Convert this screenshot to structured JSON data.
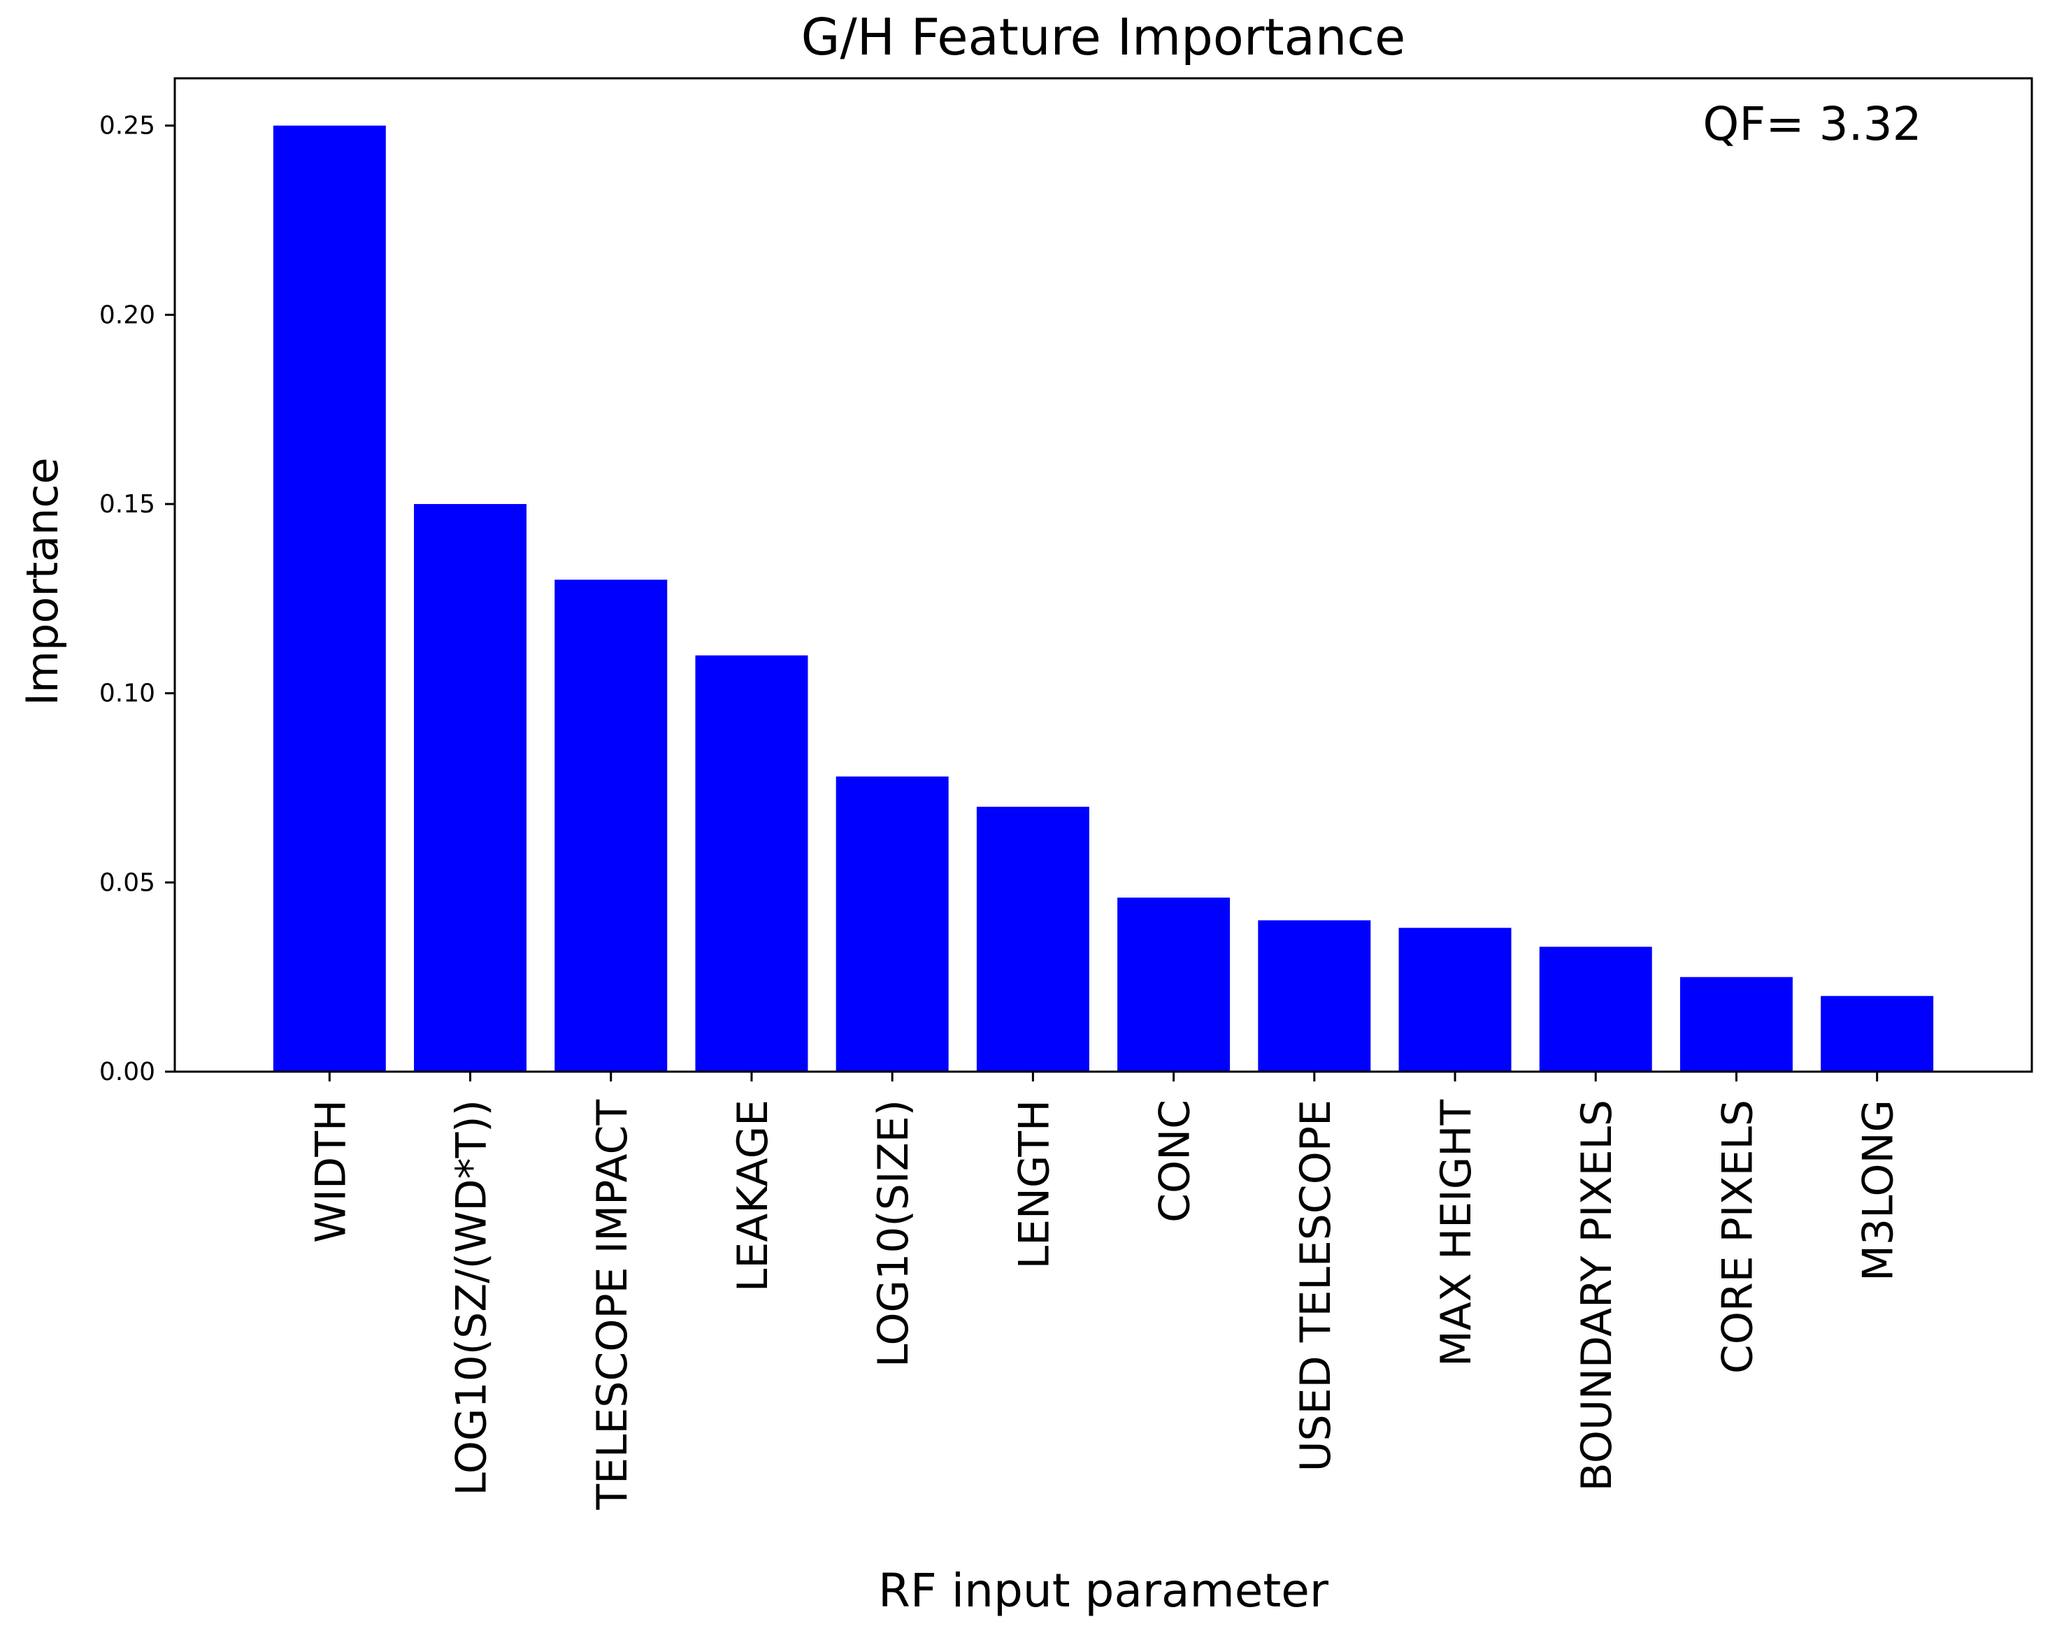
{
  "chart_data": {
    "type": "bar",
    "title": "G/H Feature Importance",
    "xlabel": "RF input parameter",
    "ylabel": "Importance",
    "annotation": "QF= 3.32",
    "categories": [
      "WIDTH",
      "LOG10(SZ/(WD*T))",
      "TELESCOPE IMPACT",
      "LEAKAGE",
      "LOG10(SIZE)",
      "LENGTH",
      "CONC",
      "USED TELESCOPE",
      "MAX HEIGHT",
      "BOUNDARY PIXELS",
      "CORE PIXELS",
      "M3LONG"
    ],
    "values": [
      0.25,
      0.15,
      0.13,
      0.11,
      0.078,
      0.07,
      0.046,
      0.04,
      0.038,
      0.033,
      0.025,
      0.02
    ],
    "ylim": [
      0,
      0.2625
    ],
    "yticks": [
      0.0,
      0.05,
      0.1,
      0.15,
      0.2,
      0.25
    ],
    "ytick_labels": [
      "0.00",
      "0.05",
      "0.10",
      "0.15",
      "0.20",
      "0.25"
    ],
    "bar_color": "#0000ff",
    "grid": false,
    "legend": "none"
  }
}
